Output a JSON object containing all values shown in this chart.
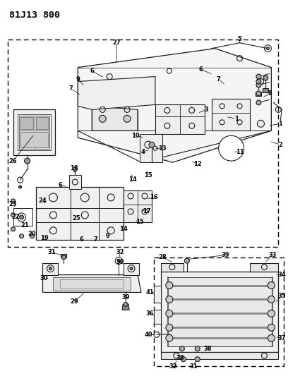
{
  "title": "81J13 800",
  "bg": "#ffffff",
  "fig_w": 4.08,
  "fig_h": 5.33,
  "dpi": 100,
  "lc": "#1a1a1a",
  "lw": 0.8,
  "fs": 6.0,
  "title_fs": 9.5
}
